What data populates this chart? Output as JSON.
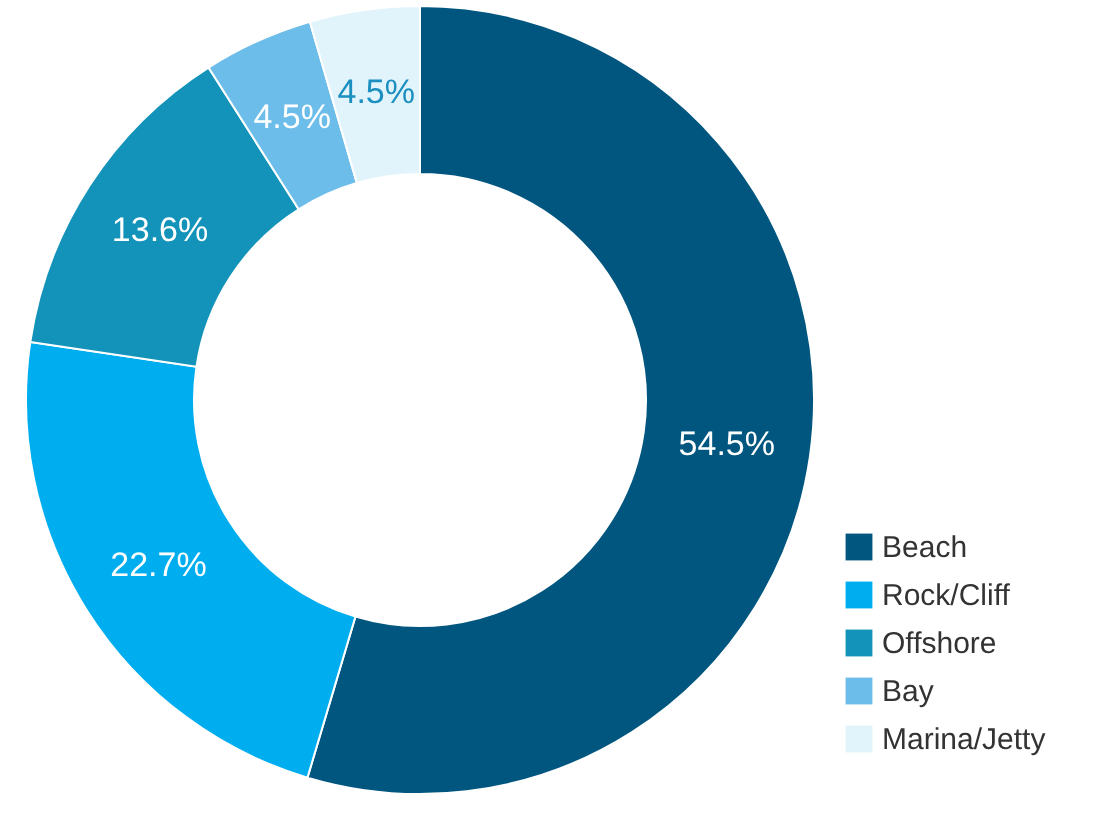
{
  "chart_data": {
    "type": "donut",
    "categories": [
      "Beach",
      "Rock/Cliff",
      "Offshore",
      "Bay",
      "Marina/Jetty"
    ],
    "values": [
      54.5,
      22.7,
      13.6,
      4.5,
      4.5
    ],
    "value_labels": [
      "54.5%",
      "22.7%",
      "13.6%",
      "4.5%",
      "4.5%"
    ],
    "colors": [
      "#00567f",
      "#00aeef",
      "#1393b9",
      "#6cbde9",
      "#e1f4fc"
    ],
    "legend": "bottom right"
  }
}
